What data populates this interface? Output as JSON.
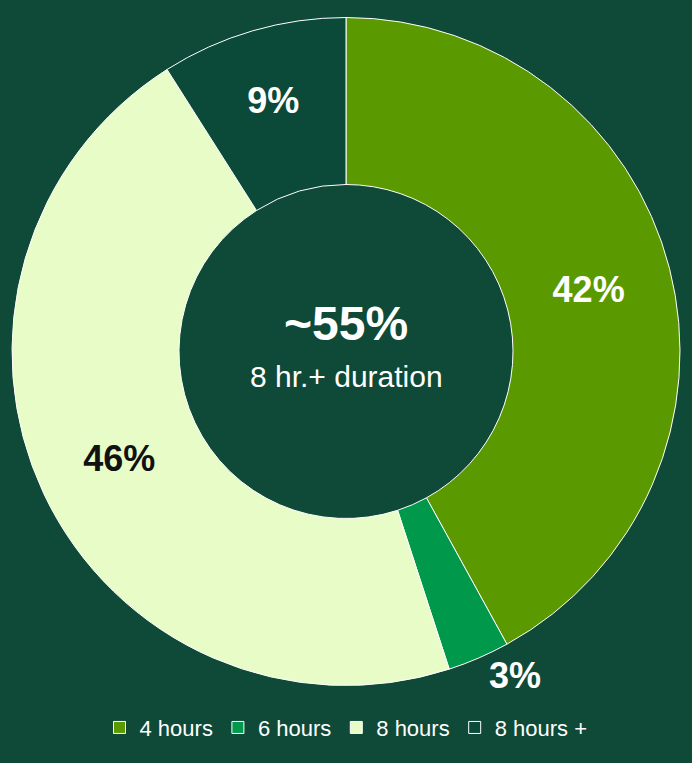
{
  "chart_data": {
    "type": "pie",
    "categories": [
      "4 hours",
      "6 hours",
      "8 hours",
      "8 hours +"
    ],
    "values": [
      42,
      3,
      46,
      9
    ],
    "value_labels": [
      "42%",
      "3%",
      "46%",
      "9%"
    ],
    "colors": [
      "#5a9a00",
      "#00984a",
      "#e8fcc8",
      "#0b4a38"
    ],
    "data_labels": true,
    "legend": "bottom",
    "annotations": [
      "~55%",
      "8 hr.+ duration"
    ]
  }
}
